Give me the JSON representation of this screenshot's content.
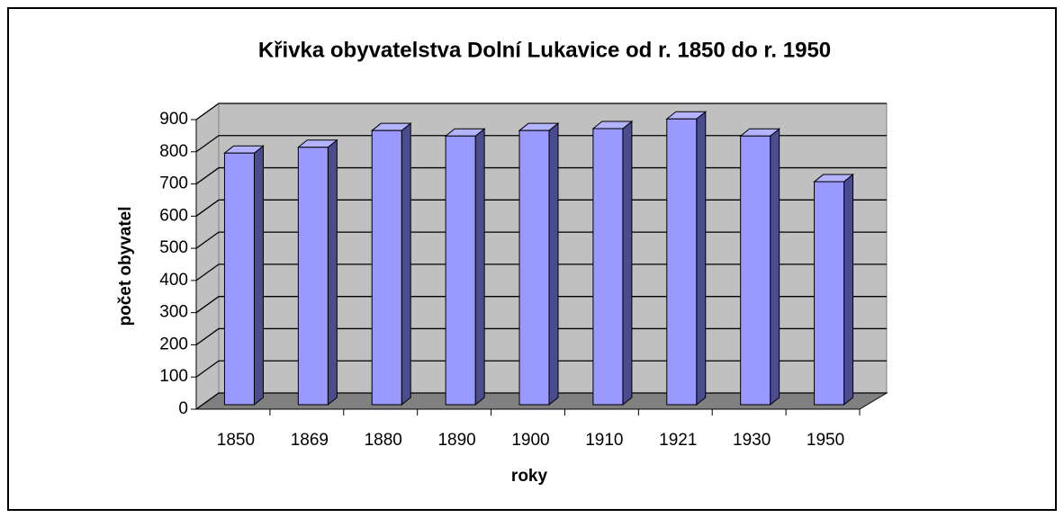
{
  "chart_data": {
    "type": "bar",
    "title": "Křivka obyvatelstva Dolní Lukavice od r. 1850 do r. 1950",
    "xlabel": "roky",
    "ylabel": "počet obyvatel",
    "categories": [
      "1850",
      "1869",
      "1880",
      "1890",
      "1900",
      "1910",
      "1921",
      "1930",
      "1950"
    ],
    "values": [
      782,
      800,
      852,
      835,
      852,
      858,
      888,
      835,
      693
    ],
    "color": "#9999ff",
    "ylim": [
      0,
      900
    ],
    "yticks": [
      0,
      100,
      200,
      300,
      400,
      500,
      600,
      700,
      800,
      900
    ],
    "grid": true
  }
}
